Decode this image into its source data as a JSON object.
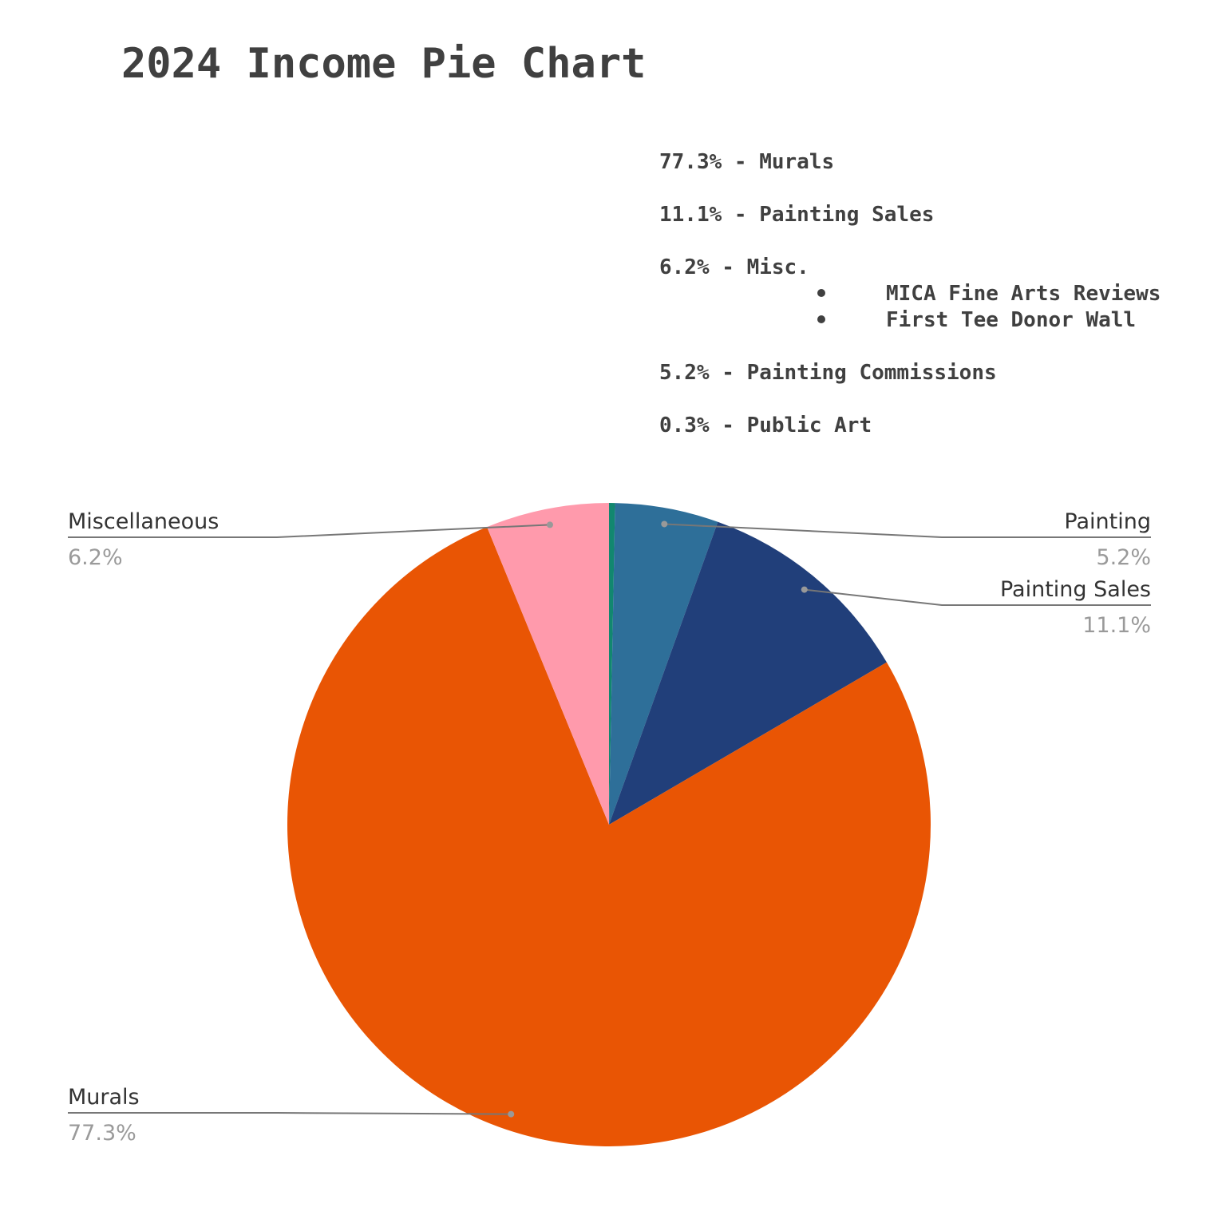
{
  "chart_data": {
    "type": "pie",
    "title": "2024 Income Pie Chart",
    "categories": [
      null,
      "Painting",
      "Painting Sales",
      "Murals",
      "Miscellaneous"
    ],
    "values": [
      0.3,
      5.2,
      11.1,
      77.3,
      6.2
    ],
    "value_labels": [
      null,
      "5.2%",
      "11.1%",
      "77.3%",
      "6.2%"
    ],
    "colors": [
      "#12876f",
      "#2e6f99",
      "#213f7a",
      "#e95504",
      "#ff9aac"
    ],
    "annotations": [
      {
        "text": "77.3% - Murals"
      },
      {
        "text": "11.1% - Painting Sales"
      },
      {
        "text": "6.2% - Misc.",
        "items": [
          "MICA Fine Arts Reviews",
          "First Tee Donor Wall"
        ]
      },
      {
        "text": "5.2% - Painting Commissions"
      },
      {
        "text": "0.3% - Public Art"
      }
    ]
  }
}
